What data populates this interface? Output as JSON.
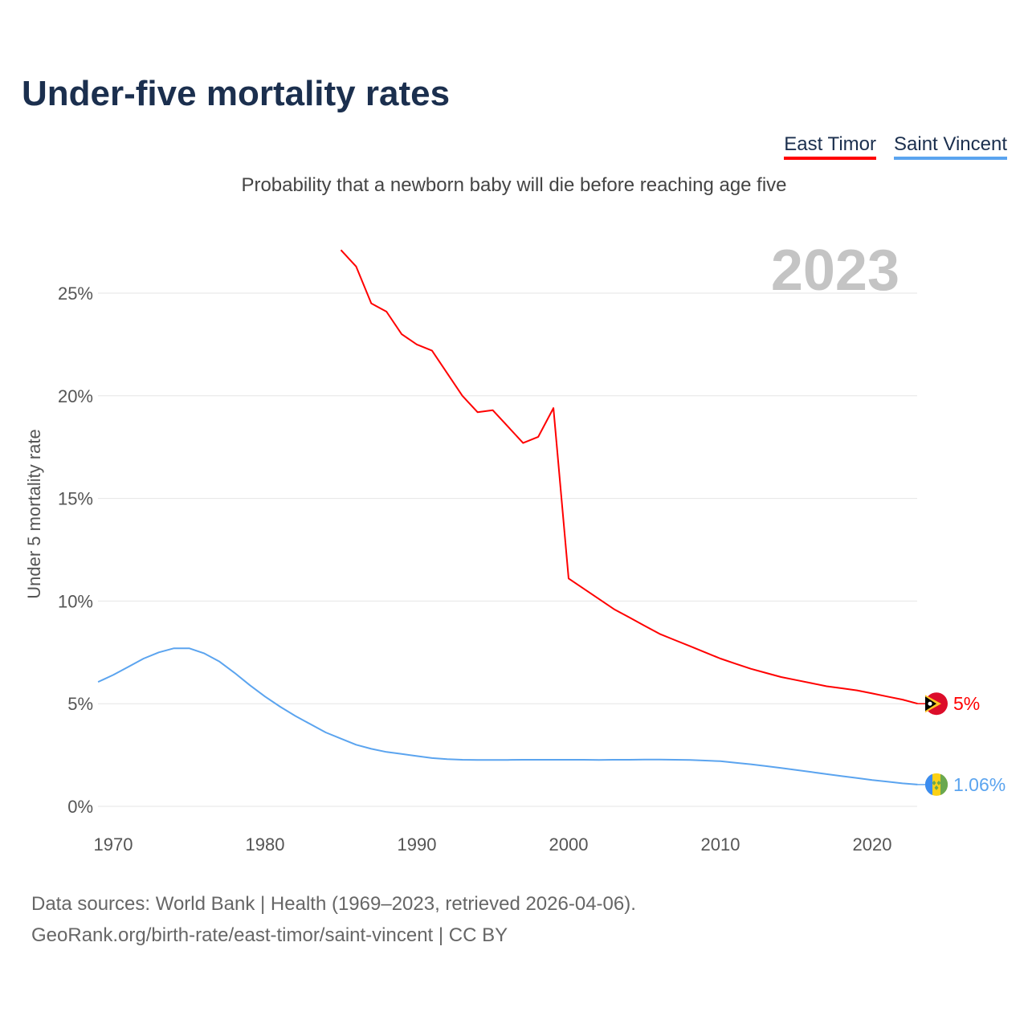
{
  "chart_data": {
    "type": "line",
    "title": "Under-five mortality rates",
    "subtitle": "Probability that a newborn baby will die before reaching age five",
    "ylabel": "Under 5 mortality rate",
    "xlabel": "",
    "year_label": "2023",
    "xlim": [
      1969,
      2023
    ],
    "ylim": [
      0,
      27.5
    ],
    "xticks": [
      1970,
      1980,
      1990,
      2000,
      2010,
      2020
    ],
    "yticks": [
      0,
      5,
      10,
      15,
      20,
      25
    ],
    "ytick_labels": [
      "0%",
      "5%",
      "10%",
      "15%",
      "20%",
      "25%"
    ],
    "grid": true,
    "legend_placement": "top-right",
    "series": [
      {
        "name": "East Timor",
        "color": "#ff0000",
        "end_label": "5%",
        "x": [
          1985,
          1986,
          1987,
          1988,
          1989,
          1990,
          1991,
          1992,
          1993,
          1994,
          1995,
          1996,
          1997,
          1998,
          1999,
          2000,
          2001,
          2002,
          2003,
          2004,
          2005,
          2006,
          2007,
          2008,
          2009,
          2010,
          2011,
          2012,
          2013,
          2014,
          2015,
          2016,
          2017,
          2018,
          2019,
          2020,
          2021,
          2022,
          2023
        ],
        "values": [
          27.1,
          26.3,
          24.5,
          24.1,
          23.0,
          22.5,
          22.2,
          21.1,
          20.0,
          19.2,
          19.3,
          18.5,
          17.7,
          18.0,
          19.4,
          11.1,
          10.6,
          10.1,
          9.6,
          9.2,
          8.8,
          8.4,
          8.1,
          7.8,
          7.5,
          7.2,
          6.95,
          6.7,
          6.5,
          6.3,
          6.15,
          6.0,
          5.85,
          5.75,
          5.65,
          5.5,
          5.35,
          5.2,
          5.0
        ]
      },
      {
        "name": "Saint Vincent",
        "color": "#5ba4ef",
        "end_label": "1.06%",
        "x": [
          1969,
          1970,
          1971,
          1972,
          1973,
          1974,
          1975,
          1976,
          1977,
          1978,
          1979,
          1980,
          1981,
          1982,
          1983,
          1984,
          1985,
          1986,
          1987,
          1988,
          1989,
          1990,
          1991,
          1992,
          1993,
          1994,
          1995,
          1996,
          1997,
          1998,
          1999,
          2000,
          2001,
          2002,
          2003,
          2004,
          2005,
          2006,
          2007,
          2008,
          2009,
          2010,
          2011,
          2012,
          2013,
          2014,
          2015,
          2016,
          2017,
          2018,
          2019,
          2020,
          2021,
          2022,
          2023
        ],
        "values": [
          6.06,
          6.4,
          6.8,
          7.2,
          7.5,
          7.7,
          7.7,
          7.45,
          7.05,
          6.5,
          5.9,
          5.35,
          4.85,
          4.4,
          4.0,
          3.6,
          3.3,
          3.0,
          2.8,
          2.65,
          2.55,
          2.45,
          2.35,
          2.3,
          2.27,
          2.26,
          2.26,
          2.26,
          2.27,
          2.27,
          2.27,
          2.27,
          2.27,
          2.26,
          2.27,
          2.27,
          2.28,
          2.28,
          2.27,
          2.26,
          2.23,
          2.2,
          2.12,
          2.05,
          1.96,
          1.87,
          1.77,
          1.67,
          1.57,
          1.47,
          1.38,
          1.28,
          1.2,
          1.12,
          1.06
        ]
      }
    ]
  },
  "source_line1": "Data sources: World Bank | Health (1969–2023, retrieved 2026-04-06).",
  "source_line2": "GeoRank.org/birth-rate/east-timor/saint-vincent | CC BY"
}
